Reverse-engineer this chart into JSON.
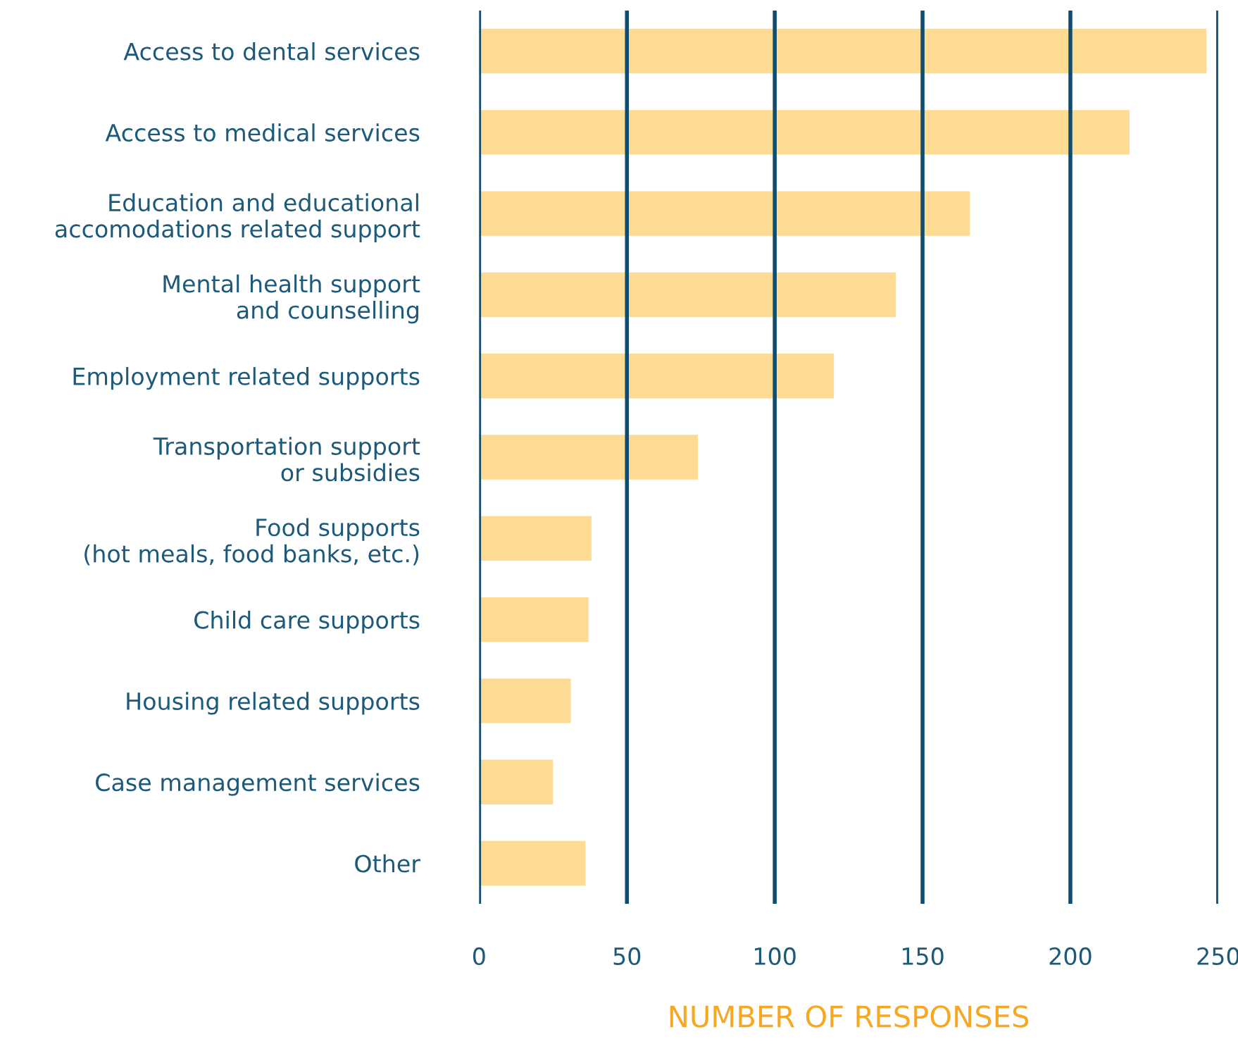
{
  "chart_data": {
    "type": "bar",
    "orientation": "horizontal",
    "categories": [
      "Access to dental services",
      "Access to medical services",
      "Education and educational\naccomodations related support",
      "Mental health support\nand counselling",
      "Employment related supports",
      "Transportation support\nor subsidies",
      "Food supports\n(hot meals, food banks, etc.)",
      "Child care supports",
      "Housing related supports",
      "Case management services",
      "Other"
    ],
    "values": [
      246,
      220,
      166,
      141,
      120,
      74,
      38,
      37,
      31,
      25,
      36
    ],
    "color": "#fedb93",
    "xlabel": "NUMBER OF RESPONSES",
    "xlim": [
      0,
      250
    ],
    "xticks": [
      0,
      50,
      100,
      150,
      200,
      250
    ],
    "grid": "x",
    "legend": false
  }
}
